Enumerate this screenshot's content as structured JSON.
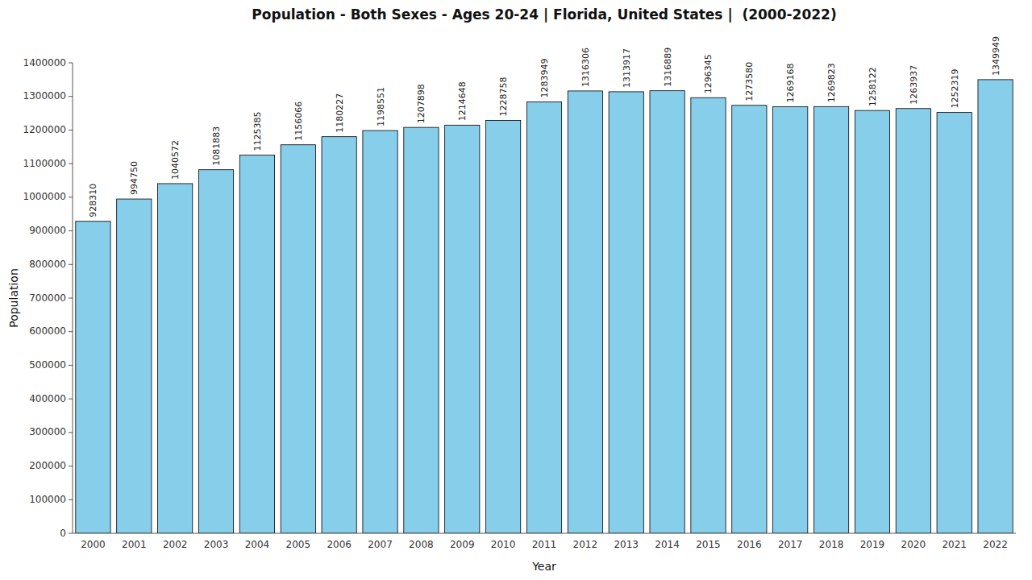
{
  "chart_data": {
    "type": "bar",
    "title": "Population - Both Sexes - Ages 20-24 | Florida, United States |  (2000-2022)",
    "x_label": "Year",
    "y_label": "Population",
    "categories": [
      "2000",
      "2001",
      "2002",
      "2003",
      "2004",
      "2005",
      "2006",
      "2007",
      "2008",
      "2009",
      "2010",
      "2011",
      "2012",
      "2013",
      "2014",
      "2015",
      "2016",
      "2017",
      "2018",
      "2019",
      "2020",
      "2021",
      "2022"
    ],
    "values": [
      928310,
      994750,
      1040572,
      1081883,
      1125385,
      1156066,
      1180227,
      1198551,
      1207898,
      1214648,
      1228758,
      1283949,
      1316306,
      1313917,
      1316889,
      1296345,
      1273580,
      1269168,
      1269823,
      1258122,
      1263937,
      1252319,
      1349949
    ],
    "color": "#87CEEB",
    "ylim": [
      0,
      1400000
    ],
    "yticks": [
      0,
      100000,
      200000,
      300000,
      400000,
      500000,
      600000,
      700000,
      800000,
      900000,
      1000000,
      1100000,
      1200000,
      1300000,
      1400000
    ],
    "grid": false,
    "data_labels": true
  }
}
